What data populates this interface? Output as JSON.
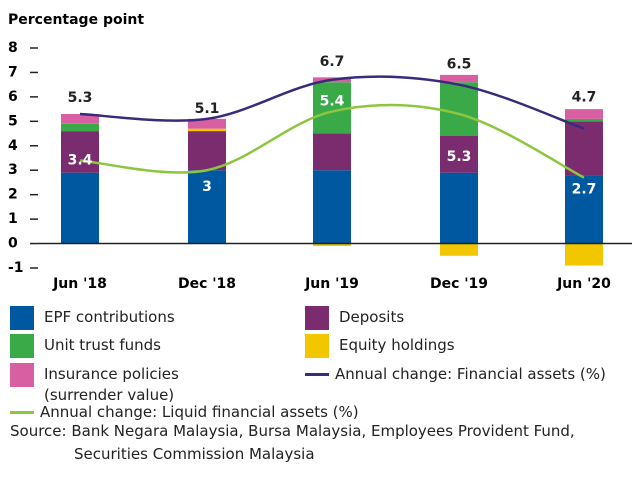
{
  "chart_data": {
    "type": "bar",
    "stacked": true,
    "y_label": "Percentage point",
    "categories": [
      "Jun '18",
      "Dec '18",
      "Jun '19",
      "Dec '19",
      "Jun '20"
    ],
    "ylim": [
      -1,
      8
    ],
    "yticks": [
      -1,
      0,
      1,
      2,
      3,
      4,
      5,
      6,
      7,
      8
    ],
    "series": [
      {
        "name": "EPF contributions",
        "color": "#0058a0",
        "values": [
          2.9,
          3.0,
          3.0,
          2.9,
          2.8
        ]
      },
      {
        "name": "Deposits",
        "color": "#7b2c6f",
        "values": [
          1.7,
          1.6,
          1.5,
          1.5,
          2.2
        ]
      },
      {
        "name": "Unit trust funds",
        "color": "#3aaa49",
        "values": [
          0.3,
          0,
          2.1,
          2.2,
          0.1
        ]
      },
      {
        "name": "Equity holdings",
        "color": "#f2c700",
        "values": [
          0,
          0.1,
          -0.1,
          -0.5,
          -0.9
        ]
      },
      {
        "name": "Insurance policies (surrender value)",
        "color": "#d95fa3",
        "values": [
          0.4,
          0.4,
          0.2,
          0.3,
          0.4
        ]
      },
      {
        "name": "Annual change: Financial assets (%)",
        "type": "line",
        "color": "#3a2a7c",
        "values": [
          5.3,
          5.1,
          6.7,
          6.5,
          4.7
        ]
      },
      {
        "name": "Annual change: Liquid financial assets (%)",
        "type": "line",
        "color": "#8cc63f",
        "values": [
          3.4,
          3.0,
          5.4,
          5.3,
          2.7
        ]
      }
    ],
    "source": "Source: Bank Negara Malaysia, Bursa Malaysia, Employees Provident Fund, Securities Commission Malaysia"
  }
}
